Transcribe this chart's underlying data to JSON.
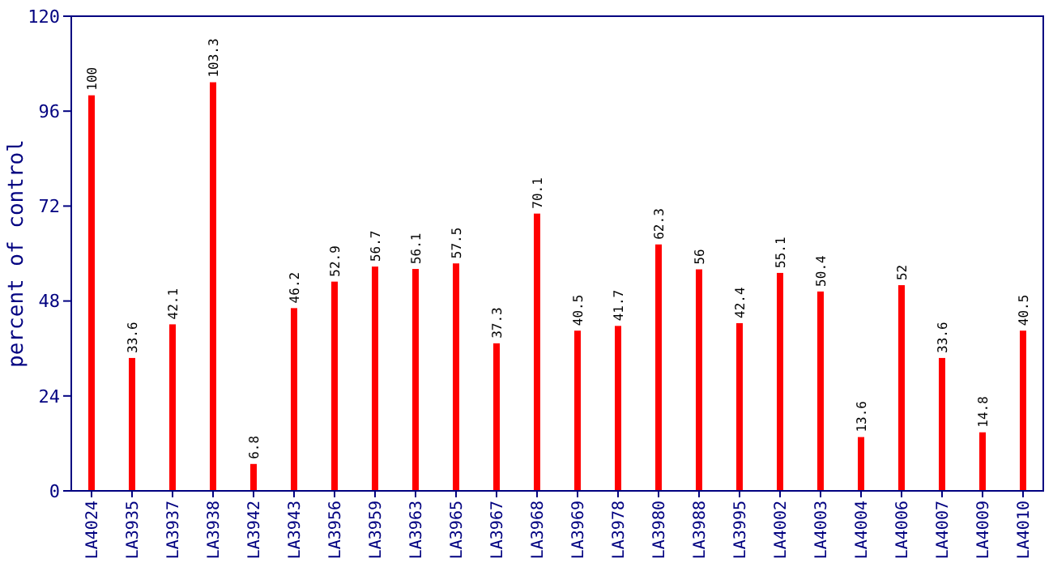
{
  "chart_data": {
    "type": "bar",
    "ylabel": "percent of control",
    "categories": [
      "LA4024",
      "LA3935",
      "LA3937",
      "LA3938",
      "LA3942",
      "LA3943",
      "LA3956",
      "LA3959",
      "LA3963",
      "LA3965",
      "LA3967",
      "LA3968",
      "LA3969",
      "LA3978",
      "LA3980",
      "LA3988",
      "LA3995",
      "LA4002",
      "LA4003",
      "LA4004",
      "LA4006",
      "LA4007",
      "LA4009",
      "LA4010"
    ],
    "values": [
      100,
      33.6,
      42.1,
      103.3,
      6.8,
      46.2,
      52.9,
      56.7,
      56.1,
      57.5,
      37.3,
      70.1,
      40.5,
      41.7,
      62.3,
      56,
      42.4,
      55.1,
      50.4,
      13.6,
      52,
      33.6,
      14.8,
      40.5
    ],
    "color": "#ff0000",
    "ylim": [
      0,
      120
    ],
    "yticks": [
      0,
      24,
      48,
      72,
      96,
      120
    ],
    "data_labels": true
  }
}
